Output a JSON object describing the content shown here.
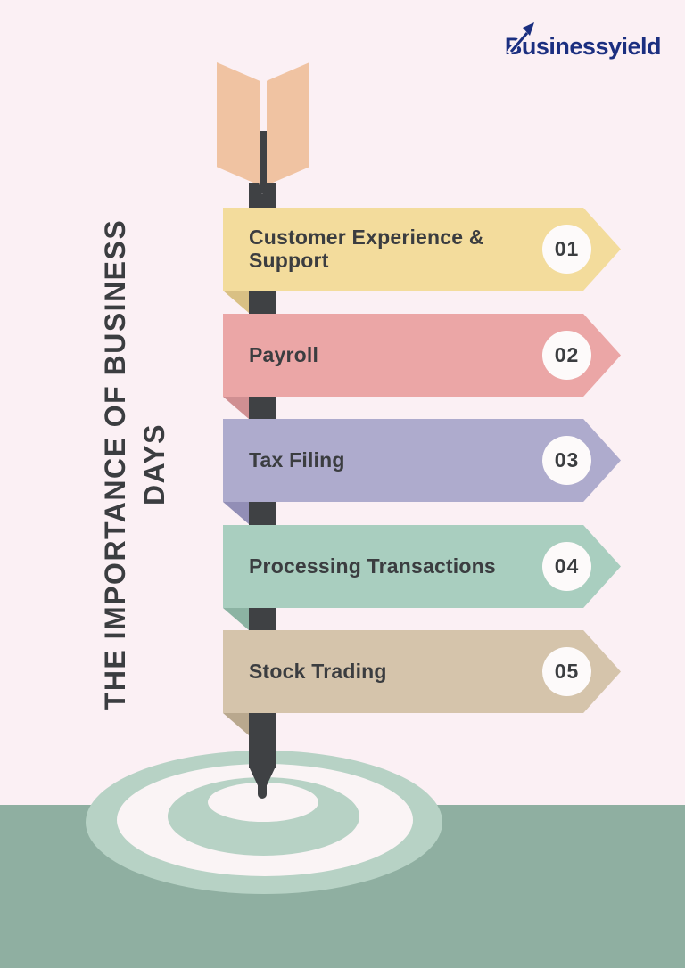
{
  "logo": {
    "brand_initial": "B",
    "brand_rest": "usinessyield"
  },
  "title": {
    "line1": "THE IMPORTANCE OF BUSINESS",
    "line2": "DAYS"
  },
  "items": [
    {
      "number": "01",
      "label": "Customer Experience & Support",
      "color": "#f3dc9c",
      "fold_color": "#d9c084"
    },
    {
      "number": "02",
      "label": "Payroll",
      "color": "#eba6a6",
      "fold_color": "#d08f92"
    },
    {
      "number": "03",
      "label": "Tax Filing",
      "color": "#aeabcd",
      "fold_color": "#928eb6"
    },
    {
      "number": "04",
      "label": "Processing Transactions",
      "color": "#a9cebf",
      "fold_color": "#8cb3a3"
    },
    {
      "number": "05",
      "label": "Stock Trading",
      "color": "#d5c4ab",
      "fold_color": "#b9a88e"
    }
  ],
  "colors": {
    "bg": "#fbf0f4",
    "band": "#8fafa1",
    "ring_green": "#b7d2c5",
    "ring_white": "#faf4f5",
    "shaft": "#3f4144",
    "feather": "#f0c3a2",
    "ink": "#3b3d40",
    "circle_bg": "#fdfafa",
    "logo_navy": "#1b2f80"
  }
}
